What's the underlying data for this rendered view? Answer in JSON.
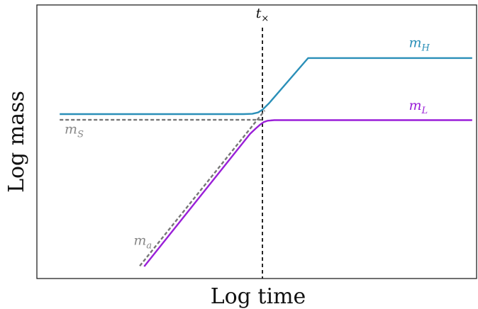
{
  "chart_data": {
    "type": "line",
    "title": "",
    "xlabel": "Log time",
    "ylabel": "Log mass",
    "grid": false,
    "legend": "none",
    "xlim": [
      0,
      100
    ],
    "ylim": [
      0,
      100
    ],
    "t_cross": 51.3,
    "series": [
      {
        "name": "m_H",
        "color": "#2a8fb8",
        "style": "solid",
        "points": [
          [
            5.2,
            60.1
          ],
          [
            47.0,
            60.1
          ],
          [
            49.0,
            60.2
          ],
          [
            50.3,
            60.7
          ],
          [
            51.3,
            61.7
          ],
          [
            52.8,
            64.1
          ],
          [
            61.7,
            80.6
          ],
          [
            99.0,
            80.6
          ]
        ]
      },
      {
        "name": "m_L",
        "color": "#9a1fd8",
        "style": "solid",
        "points": [
          [
            24.4,
            4.4
          ],
          [
            48.5,
            52.9
          ],
          [
            49.8,
            54.9
          ],
          [
            50.8,
            56.3
          ],
          [
            51.6,
            57.2
          ],
          [
            52.5,
            57.7
          ],
          [
            54.0,
            57.9
          ],
          [
            99.0,
            57.9
          ]
        ]
      },
      {
        "name": "m_S",
        "color": "#777777",
        "style": "dashed",
        "points": [
          [
            5.2,
            58.0
          ],
          [
            51.3,
            58.0
          ]
        ]
      },
      {
        "name": "m_a",
        "color": "#777777",
        "style": "dashed",
        "points": [
          [
            23.4,
            4.6
          ],
          [
            51.8,
            61.4
          ]
        ]
      }
    ],
    "annotations": [
      {
        "base": "t",
        "sub": "×",
        "x": 51.3,
        "y": 95.3,
        "color": "#111111",
        "anchor": "middle"
      },
      {
        "base": "m",
        "sub": "H",
        "x": 84.6,
        "y": 84.6,
        "color": "#2a8fb8",
        "anchor": "start"
      },
      {
        "base": "m",
        "sub": "L",
        "x": 84.6,
        "y": 61.6,
        "color": "#9a1fd8",
        "anchor": "start"
      },
      {
        "base": "m",
        "sub": "S",
        "x": 6.3,
        "y": 53.0,
        "color": "#888888",
        "anchor": "start"
      },
      {
        "base": "m",
        "sub": "a",
        "x": 22.0,
        "y": 12.3,
        "color": "#888888",
        "anchor": "start"
      }
    ]
  }
}
